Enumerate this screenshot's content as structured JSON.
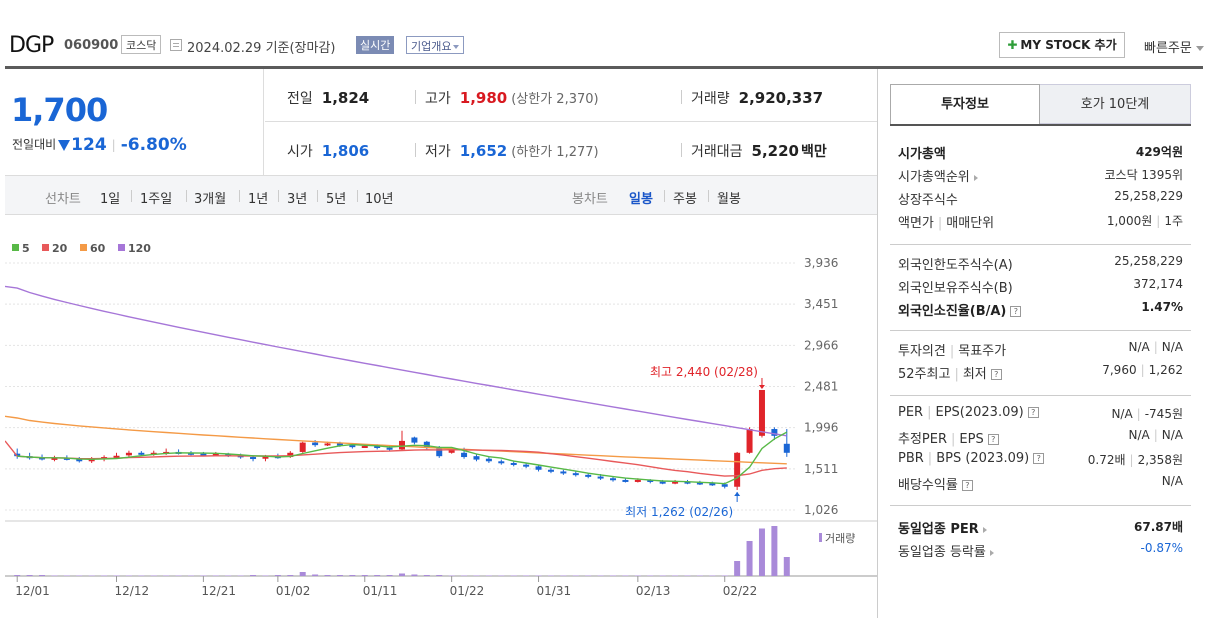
{
  "header": {
    "name": "DGP",
    "code": "060900",
    "market": "코스닥",
    "date": "2024.02.29  기준(장마감)",
    "realtime": "실시간",
    "corp_info": "기업개요",
    "my_stock": "MY STOCK 추가",
    "quick_order": "빠른주문"
  },
  "price": {
    "current": "1,700",
    "change_label": "전일대비",
    "change": "124",
    "change_pct": "-6.80%"
  },
  "quotes": {
    "prev_label": "전일",
    "prev": "1,824",
    "high_label": "고가",
    "high": "1,980",
    "upper": "(상한가 2,370)",
    "volume_label": "거래량",
    "volume": "2,920,337",
    "open_label": "시가",
    "open": "1,806",
    "low_label": "저가",
    "low": "1,652",
    "lower": "(하한가 1,277)",
    "amount_label": "거래대금",
    "amount": "5,220",
    "amount_unit": "백만"
  },
  "periods": {
    "line_label": "선차트",
    "line": [
      "1일",
      "1주일",
      "3개월",
      "1년",
      "3년",
      "5년",
      "10년"
    ],
    "candle_label": "봉차트",
    "candle": [
      "일봉",
      "주봉",
      "월봉"
    ],
    "selected": "일봉"
  },
  "colors": {
    "up": "#e0242a",
    "down": "#1a66d5",
    "ma5": "#58b947",
    "ma20": "#e8595a",
    "ma60": "#f49a46",
    "ma120": "#a676d8",
    "volume": "#a98ad9"
  },
  "chart_data": {
    "type": "candlestick",
    "legend": [
      "5",
      "20",
      "60",
      "120"
    ],
    "y_ticks": [
      "3,936",
      "3,451",
      "2,966",
      "2,481",
      "1,996",
      "1,511",
      "1,026"
    ],
    "ylim": [
      1026,
      3936
    ],
    "x_ticks": [
      "12/01",
      "12/12",
      "12/21",
      "01/02",
      "01/11",
      "01/22",
      "01/31",
      "02/13",
      "02/22"
    ],
    "high_annotation": "최고 2,440 (02/28)",
    "low_annotation": "최저 1,262 (02/26)",
    "volume_label": "거래량",
    "candles": [
      [
        1690,
        1660,
        1750,
        1630
      ],
      [
        1660,
        1640,
        1700,
        1620
      ],
      [
        1645,
        1625,
        1680,
        1610
      ],
      [
        1625,
        1640,
        1665,
        1600
      ],
      [
        1640,
        1625,
        1670,
        1610
      ],
      [
        1625,
        1600,
        1650,
        1585
      ],
      [
        1600,
        1625,
        1650,
        1580
      ],
      [
        1625,
        1650,
        1670,
        1600
      ],
      [
        1650,
        1665,
        1700,
        1630
      ],
      [
        1670,
        1700,
        1725,
        1650
      ],
      [
        1700,
        1690,
        1720,
        1670
      ],
      [
        1690,
        1700,
        1725,
        1665
      ],
      [
        1700,
        1710,
        1750,
        1675
      ],
      [
        1710,
        1700,
        1740,
        1680
      ],
      [
        1700,
        1690,
        1720,
        1670
      ],
      [
        1690,
        1680,
        1710,
        1660
      ],
      [
        1680,
        1690,
        1710,
        1660
      ],
      [
        1690,
        1670,
        1700,
        1650
      ],
      [
        1670,
        1650,
        1690,
        1630
      ],
      [
        1650,
        1630,
        1670,
        1600
      ],
      [
        1630,
        1660,
        1675,
        1600
      ],
      [
        1660,
        1650,
        1690,
        1630
      ],
      [
        1650,
        1700,
        1720,
        1640
      ],
      [
        1710,
        1820,
        1830,
        1700
      ],
      [
        1820,
        1790,
        1850,
        1770
      ],
      [
        1790,
        1810,
        1830,
        1780
      ],
      [
        1810,
        1790,
        1830,
        1770
      ],
      [
        1790,
        1770,
        1810,
        1750
      ],
      [
        1770,
        1780,
        1800,
        1760
      ],
      [
        1780,
        1760,
        1800,
        1740
      ],
      [
        1760,
        1740,
        1790,
        1720
      ],
      [
        1740,
        1840,
        1960,
        1730
      ],
      [
        1880,
        1820,
        1890,
        1800
      ],
      [
        1830,
        1760,
        1840,
        1740
      ],
      [
        1760,
        1660,
        1780,
        1640
      ],
      [
        1700,
        1740,
        1760,
        1690
      ],
      [
        1700,
        1650,
        1760,
        1630
      ],
      [
        1660,
        1620,
        1680,
        1600
      ],
      [
        1630,
        1600,
        1650,
        1580
      ],
      [
        1600,
        1580,
        1620,
        1560
      ],
      [
        1580,
        1560,
        1600,
        1540
      ],
      [
        1560,
        1540,
        1580,
        1520
      ],
      [
        1540,
        1500,
        1560,
        1480
      ],
      [
        1500,
        1480,
        1520,
        1460
      ],
      [
        1480,
        1460,
        1500,
        1440
      ],
      [
        1460,
        1440,
        1480,
        1420
      ],
      [
        1440,
        1420,
        1460,
        1400
      ],
      [
        1420,
        1400,
        1450,
        1380
      ],
      [
        1400,
        1380,
        1420,
        1360
      ],
      [
        1380,
        1370,
        1400,
        1350
      ],
      [
        1370,
        1380,
        1400,
        1350
      ],
      [
        1380,
        1360,
        1390,
        1340
      ],
      [
        1360,
        1350,
        1380,
        1330
      ],
      [
        1350,
        1360,
        1380,
        1330
      ],
      [
        1360,
        1350,
        1380,
        1330
      ],
      [
        1350,
        1340,
        1370,
        1320
      ],
      [
        1340,
        1330,
        1360,
        1310
      ],
      [
        1330,
        1300,
        1350,
        1280
      ],
      [
        1300,
        1700,
        1710,
        1262
      ],
      [
        1700,
        1980,
        2000,
        1690
      ],
      [
        1900,
        2440,
        2440,
        1880
      ],
      [
        1980,
        1900,
        2000,
        1850
      ],
      [
        1806,
        1700,
        1980,
        1652
      ]
    ],
    "volume": [
      2,
      2,
      2,
      1,
      1,
      1,
      1,
      1,
      1,
      1,
      1,
      1,
      1,
      1,
      1,
      1,
      1,
      1,
      1,
      2,
      1,
      2,
      2,
      8,
      3,
      2,
      2,
      2,
      2,
      2,
      2,
      5,
      3,
      2,
      2,
      1,
      1,
      1,
      1,
      1,
      1,
      1,
      1,
      1,
      1,
      1,
      1,
      1,
      1,
      1,
      1,
      1,
      1,
      1,
      1,
      1,
      1,
      1,
      30,
      70,
      95,
      100,
      38
    ]
  },
  "panel": {
    "tab_active": "투자정보",
    "tab_other": "호가 10단계",
    "g1": [
      {
        "k": "시가총액",
        "v": "429억원",
        "bold": true
      },
      {
        "k": "시가총액순위",
        "v": "코스닥 1395위",
        "arrow": true
      },
      {
        "k": "상장주식수",
        "v": "25,258,229"
      },
      {
        "k": "액면가",
        "k2": "매매단위",
        "v": "1,000원",
        "v2": "1주"
      }
    ],
    "g2": [
      {
        "k": "외국인한도주식수(A)",
        "v": "25,258,229"
      },
      {
        "k": "외국인보유주식수(B)",
        "v": "372,174"
      },
      {
        "k": "외국인소진율(B/A)",
        "v": "1.47%",
        "bold": true,
        "help": true
      }
    ],
    "g3": [
      {
        "k": "투자의견",
        "k2": "목표주가",
        "v": "N/A",
        "v2": "N/A"
      },
      {
        "k": "52주최고",
        "k2": "최저",
        "v": "7,960",
        "v2": "1,262",
        "help": true
      }
    ],
    "g4": [
      {
        "k": "PER",
        "k2": "EPS(2023.09)",
        "v": "N/A",
        "v2": "-745원",
        "help": true
      },
      {
        "k": "추정PER",
        "k2": "EPS",
        "v": "N/A",
        "v2": "N/A",
        "help": true
      },
      {
        "k": "PBR",
        "k2": "BPS (2023.09)",
        "v": "0.72배",
        "v2": "2,358원",
        "help": true
      },
      {
        "k": "배당수익률",
        "v": "N/A",
        "help": true
      }
    ],
    "g5": [
      {
        "k": "동일업종 PER",
        "v": "67.87배",
        "bold": true,
        "arrow": true
      },
      {
        "k": "동일업종 등락률",
        "v": "-0.87%",
        "arrow": true,
        "blue": true
      }
    ]
  }
}
